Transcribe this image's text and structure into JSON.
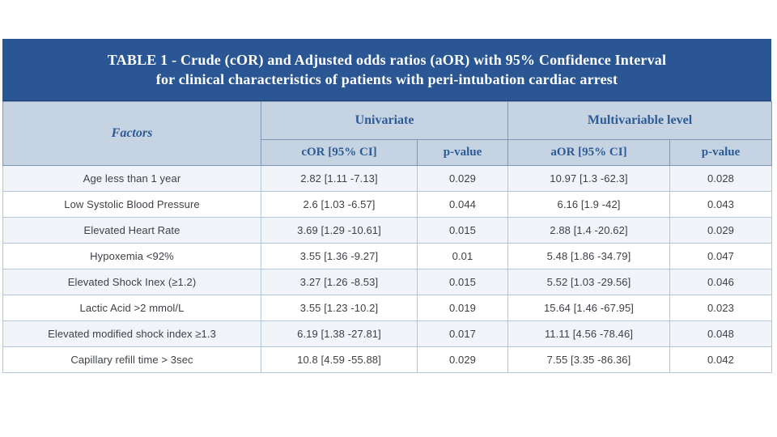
{
  "title": {
    "line1": "TABLE 1 - Crude (cOR) and Adjusted odds ratios (aOR) with 95% Confidence Interval",
    "line2": "for clinical characteristics of patients with peri-intubation cardiac arrest"
  },
  "colors": {
    "banner_bg": "#2a5794",
    "banner_text": "#ffffff",
    "header_bg": "#c6d3e3",
    "header_text": "#2d5b94",
    "row_alt_bg": "#f1f5f9",
    "grid_border": "#b3c5d6",
    "body_text": "#3d4145"
  },
  "chart_data": {
    "type": "table",
    "title": "TABLE 1 - Crude (cOR) and Adjusted odds ratios (aOR) with 95% Confidence Interval for clinical characteristics of patients with peri-intubation cardiac arrest",
    "column_groups": [
      "Univariate",
      "Multivariable level"
    ],
    "columns": [
      "Factors",
      "cOR [95% CI]",
      "p-value",
      "aOR [95% CI]",
      "p-value"
    ],
    "rows": [
      [
        "Age less than 1 year",
        "2.82 [1.11 -7.13]",
        "0.029",
        "10.97 [1.3 -62.3]",
        "0.028"
      ],
      [
        "Low Systolic Blood Pressure",
        "2.6 [1.03 -6.57]",
        "0.044",
        "6.16 [1.9 -42]",
        "0.043"
      ],
      [
        "Elevated Heart Rate",
        "3.69 [1.29 -10.61]",
        "0.015",
        "2.88 [1.4 -20.62]",
        "0.029"
      ],
      [
        "Hypoxemia <92%",
        "3.55 [1.36 -9.27]",
        "0.01",
        "5.48 [1.86 -34.79]",
        "0.047"
      ],
      [
        "Elevated Shock Inex (≥1.2)",
        "3.27 [1.26 -8.53]",
        "0.015",
        "5.52 [1.03 -29.56]",
        "0.046"
      ],
      [
        "Lactic Acid >2 mmol/L",
        "3.55 [1.23 -10.2]",
        "0.019",
        "15.64 [1.46 -67.95]",
        "0.023"
      ],
      [
        "Elevated modified shock index ≥1.3",
        "6.19 [1.38 -27.81]",
        "0.017",
        "11.11 [4.56 -78.46]",
        "0.048"
      ],
      [
        "Capillary refill time > 3sec",
        "10.8 [4.59 -55.88]",
        "0.029",
        "7.55 [3.35 -86.36]",
        "0.042"
      ]
    ]
  },
  "table": {
    "header": {
      "factors": "Factors",
      "univariate": "Univariate",
      "multivariable": "Multivariable level",
      "cor": "cOR [95% CI]",
      "p_uni": "p-value",
      "aor": "aOR [95% CI]",
      "p_multi": "p-value"
    },
    "rows": [
      {
        "factor": "Age less than 1 year",
        "cor": "2.82 [1.11 -7.13]",
        "p_uni": "0.029",
        "aor": "10.97 [1.3 -62.3]",
        "p_multi": "0.028"
      },
      {
        "factor": "Low Systolic Blood Pressure",
        "cor": "2.6 [1.03 -6.57]",
        "p_uni": "0.044",
        "aor": "6.16 [1.9 -42]",
        "p_multi": "0.043"
      },
      {
        "factor": "Elevated Heart Rate",
        "cor": "3.69 [1.29 -10.61]",
        "p_uni": "0.015",
        "aor": "2.88 [1.4 -20.62]",
        "p_multi": "0.029"
      },
      {
        "factor": "Hypoxemia <92%",
        "cor": "3.55 [1.36 -9.27]",
        "p_uni": "0.01",
        "aor": "5.48 [1.86 -34.79]",
        "p_multi": "0.047"
      },
      {
        "factor": "Elevated Shock Inex (≥1.2)",
        "cor": "3.27 [1.26 -8.53]",
        "p_uni": "0.015",
        "aor": "5.52 [1.03 -29.56]",
        "p_multi": "0.046"
      },
      {
        "factor": "Lactic Acid >2 mmol/L",
        "cor": "3.55 [1.23 -10.2]",
        "p_uni": "0.019",
        "aor": "15.64 [1.46 -67.95]",
        "p_multi": "0.023"
      },
      {
        "factor": "Elevated modified shock index ≥1.3",
        "cor": "6.19 [1.38 -27.81]",
        "p_uni": "0.017",
        "aor": "11.11 [4.56 -78.46]",
        "p_multi": "0.048"
      },
      {
        "factor": "Capillary refill time > 3sec",
        "cor": "10.8 [4.59 -55.88]",
        "p_uni": "0.029",
        "aor": "7.55 [3.35 -86.36]",
        "p_multi": "0.042"
      }
    ]
  }
}
